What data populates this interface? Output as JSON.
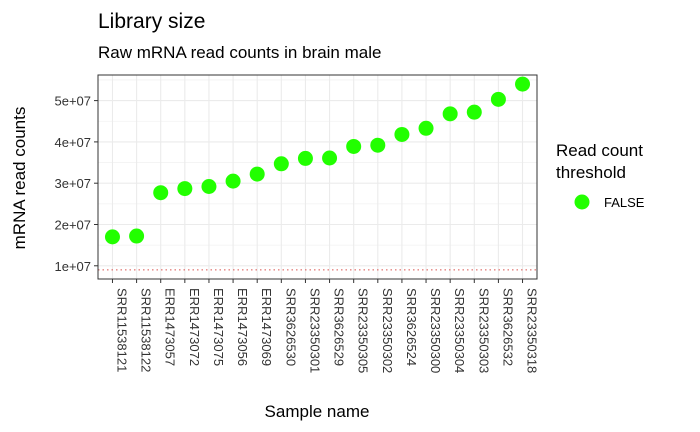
{
  "chart_data": {
    "type": "scatter",
    "title": "Library size",
    "subtitle": "Raw mRNA read counts in brain male",
    "xlabel": "Sample name",
    "ylabel": "mRNA read counts",
    "categories": [
      "SRR11538121",
      "SRR11538122",
      "ERR1473057",
      "ERR1473072",
      "ERR1473075",
      "ERR1473056",
      "ERR1473069",
      "SRR3626530",
      "SRR23350301",
      "SRR3626529",
      "SRR23350305",
      "SRR23350302",
      "SRR3626524",
      "SRR23350300",
      "SRR23350304",
      "SRR23350303",
      "SRR3626532",
      "SRR23350318"
    ],
    "series": [
      {
        "name": "FALSE",
        "color": "#22ff00",
        "values": [
          17000000,
          17200000,
          27700000,
          28700000,
          29200000,
          30500000,
          32200000,
          34700000,
          36000000,
          36100000,
          38900000,
          39200000,
          41800000,
          43300000,
          46800000,
          47200000,
          50300000,
          54000000
        ]
      }
    ],
    "threshold": {
      "value": 9000000,
      "color": "#d9534f",
      "style": "dotted"
    },
    "yticks": [
      10000000,
      20000000,
      30000000,
      40000000,
      50000000
    ],
    "ytick_labels": [
      "1e+07",
      "2e+07",
      "3e+07",
      "4e+07",
      "5e+07"
    ],
    "ylim": [
      6800000,
      56200000
    ],
    "grid": true,
    "legend": {
      "title": [
        "Read count",
        "threshold"
      ],
      "placement": "right"
    }
  }
}
